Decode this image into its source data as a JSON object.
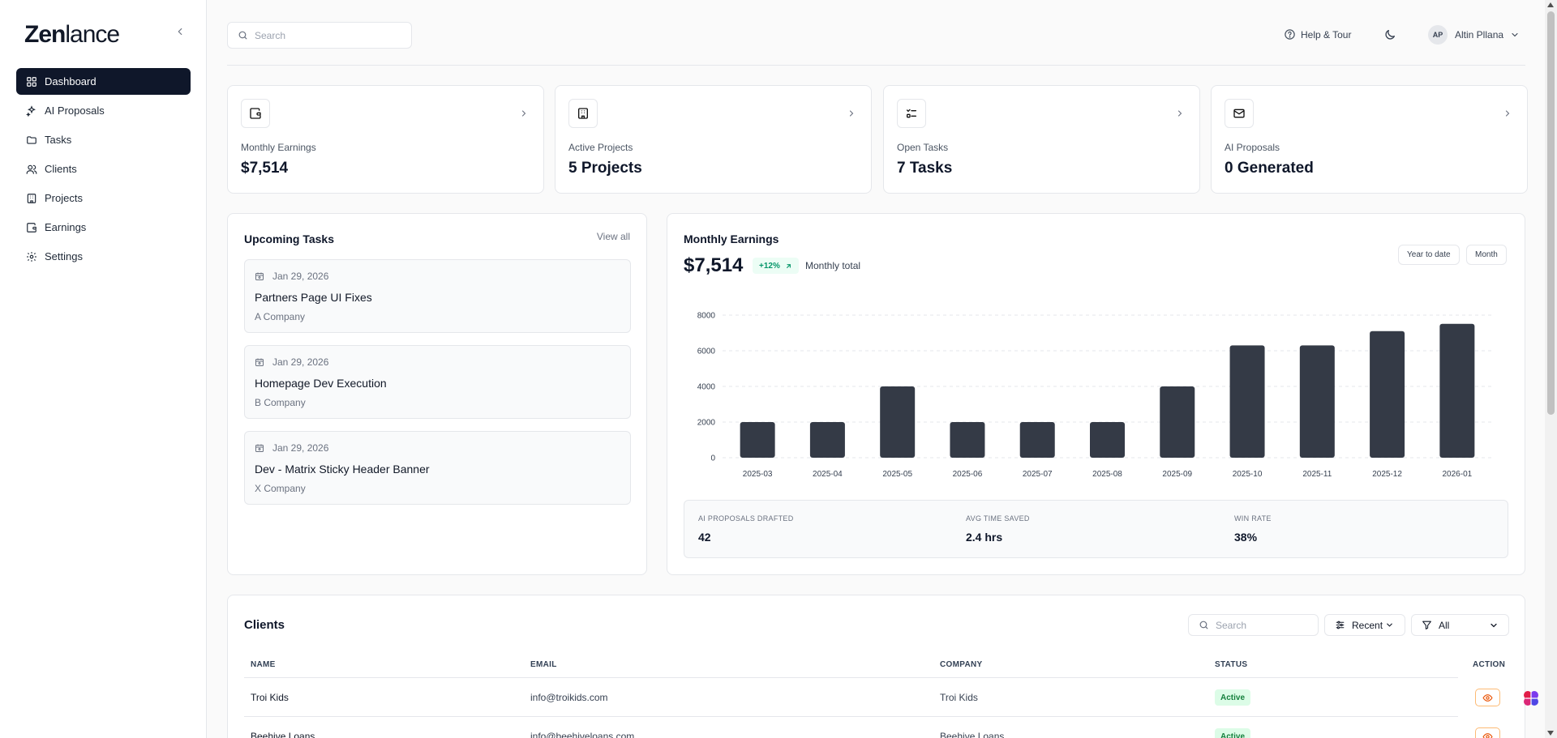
{
  "app": {
    "logo_bold": "Zen",
    "logo_light": "lance"
  },
  "sidebar": {
    "items": [
      {
        "label": "Dashboard",
        "icon": "dashboard-icon",
        "active": true
      },
      {
        "label": "AI Proposals",
        "icon": "sparkles-icon"
      },
      {
        "label": "Tasks",
        "icon": "folder-icon"
      },
      {
        "label": "Clients",
        "icon": "users-icon"
      },
      {
        "label": "Projects",
        "icon": "building-icon"
      },
      {
        "label": "Earnings",
        "icon": "wallet-icon"
      },
      {
        "label": "Settings",
        "icon": "gear-icon"
      }
    ]
  },
  "topbar": {
    "search_placeholder": "Search",
    "help_label": "Help & Tour",
    "user_initials": "AP",
    "user_name": "Altin Pllana"
  },
  "stats": [
    {
      "label": "Monthly Earnings",
      "value": "$7,514",
      "icon": "wallet-icon"
    },
    {
      "label": "Active Projects",
      "value": "5 Projects",
      "icon": "building-icon"
    },
    {
      "label": "Open Tasks",
      "value": "7 Tasks",
      "icon": "checklist-icon"
    },
    {
      "label": "AI Proposals",
      "value": "0 Generated",
      "icon": "mail-icon"
    }
  ],
  "upcoming": {
    "title": "Upcoming Tasks",
    "view_all": "View all",
    "tasks": [
      {
        "date": "Jan 29, 2026",
        "title": "Partners Page UI Fixes",
        "company": "A Company"
      },
      {
        "date": "Jan 29, 2026",
        "title": "Homepage Dev Execution",
        "company": "B Company"
      },
      {
        "date": "Jan 29, 2026",
        "title": "Dev - Matrix Sticky Header Banner",
        "company": "X Company"
      }
    ]
  },
  "earnings": {
    "title": "Monthly Earnings",
    "total": "$7,514",
    "change": "+12%",
    "total_label": "Monthly total",
    "btn_ytd": "Year to date",
    "btn_month": "Month",
    "kpis": [
      {
        "label": "AI PROPOSALS DRAFTED",
        "value": "42"
      },
      {
        "label": "AVG TIME SAVED",
        "value": "2.4 hrs"
      },
      {
        "label": "WIN RATE",
        "value": "38%"
      }
    ]
  },
  "chart_data": {
    "type": "bar",
    "categories": [
      "2025-03",
      "2025-04",
      "2025-05",
      "2025-06",
      "2025-07",
      "2025-08",
      "2025-09",
      "2025-10",
      "2025-11",
      "2025-12",
      "2026-01"
    ],
    "values": [
      2000,
      2000,
      4000,
      2000,
      2000,
      2000,
      4000,
      6300,
      6300,
      7100,
      7514
    ],
    "ylim": [
      0,
      8000
    ],
    "yticks": [
      0,
      2000,
      4000,
      6000,
      8000
    ],
    "grid": true,
    "bar_color": "#343a46"
  },
  "clients": {
    "title": "Clients",
    "search_placeholder": "Search",
    "sort_label": "Recent",
    "filter_label": "All",
    "columns": [
      "NAME",
      "EMAIL",
      "COMPANY",
      "STATUS",
      "ACTION"
    ],
    "rows": [
      {
        "name": "Troi Kids",
        "email": "info@troikids.com",
        "company": "Troi Kids",
        "status": "Active"
      },
      {
        "name": "Beehive Loans",
        "email": "info@beehiveloans.com",
        "company": "Beehive Loans",
        "status": "Active"
      }
    ]
  },
  "colors": {
    "primary": "#0f172a",
    "accent_green": "#059669",
    "action_orange": "#ea580c"
  }
}
